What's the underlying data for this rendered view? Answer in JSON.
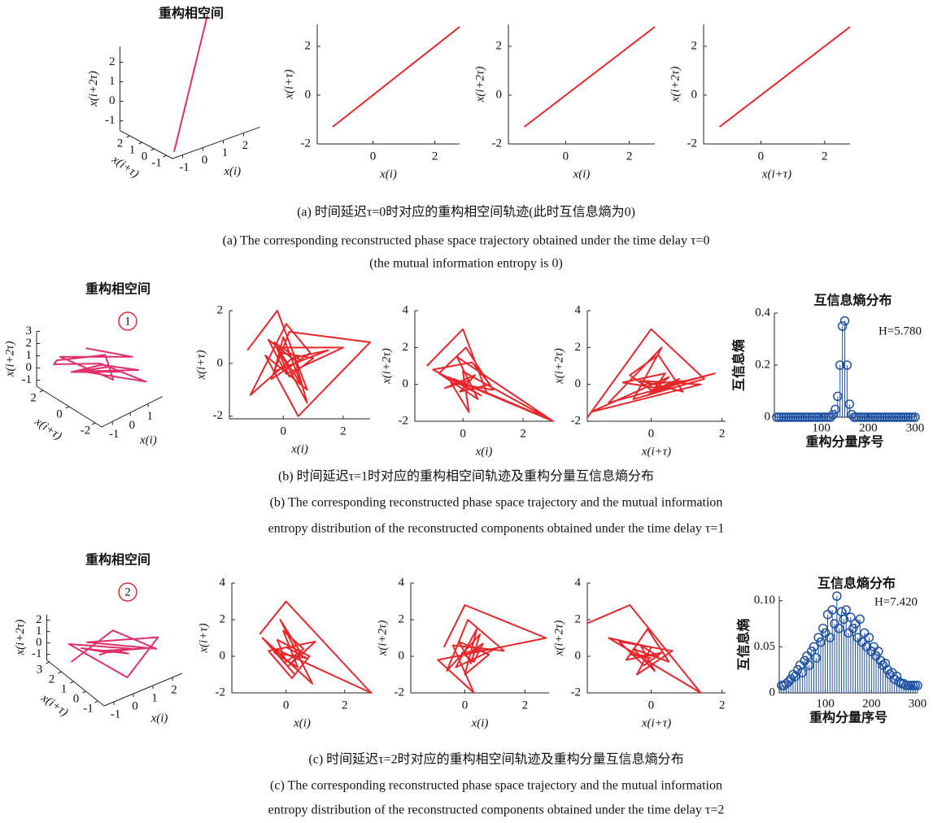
{
  "chart_data": [
    {
      "type": "line3d",
      "title": "重构相空间",
      "color": "#e0306a",
      "xlabel": "x(i)",
      "ylabel": "x(i+τ)",
      "zlabel": "x(i+2τ)",
      "x": [
        -1.3,
        2.8
      ],
      "y": [
        -1.3,
        2.8
      ],
      "values": [
        -1.3,
        2.8
      ],
      "xlim": [
        -1.5,
        2.8
      ],
      "ylim": [
        -1.5,
        2.8
      ],
      "zlim": [
        -1.5,
        2.8
      ],
      "xticks": [
        -1,
        0,
        1,
        2
      ],
      "yticks": [
        -1,
        0,
        1,
        2
      ],
      "zticks": [
        -1,
        0,
        1,
        2
      ]
    },
    {
      "type": "line",
      "color": "#e8262a",
      "xlabel": "x(i)",
      "ylabel": "x(i+τ)",
      "x": [
        -1.3,
        2.8
      ],
      "values": [
        -1.3,
        2.8
      ],
      "xlim": [
        -1.8,
        2.8
      ],
      "ylim": [
        -2,
        2.9
      ],
      "xticks": [
        0,
        2
      ],
      "yticks": [
        -2,
        0,
        2
      ]
    },
    {
      "type": "line",
      "color": "#e8262a",
      "xlabel": "x(i)",
      "ylabel": "x(i+2τ)",
      "x": [
        -1.3,
        2.8
      ],
      "values": [
        -1.3,
        2.8
      ],
      "xlim": [
        -1.8,
        2.8
      ],
      "ylim": [
        -2,
        2.9
      ],
      "xticks": [
        0,
        2
      ],
      "yticks": [
        -2,
        0,
        2
      ]
    },
    {
      "type": "line",
      "color": "#e8262a",
      "xlabel": "x(i+τ)",
      "ylabel": "x(i+2τ)",
      "x": [
        -1.3,
        2.8
      ],
      "values": [
        -1.3,
        2.8
      ],
      "xlim": [
        -1.8,
        2.8
      ],
      "ylim": [
        -2,
        2.9
      ],
      "xticks": [
        0,
        2
      ],
      "yticks": [
        -2,
        0,
        2
      ]
    },
    {
      "type": "line3d",
      "title": "重构相空间",
      "marker": "1",
      "color": "#e0306a",
      "xlabel": "x(i)",
      "ylabel": "x(i+τ)",
      "zlabel": "x(i+2τ)",
      "x": [
        -0.3,
        1.2,
        -0.8,
        0.5,
        1.0,
        -1.2,
        -1.0,
        0.3,
        1.6,
        -0.4,
        0.6,
        -0.2,
        1.4,
        0.2,
        -0.6,
        0.8
      ],
      "y": [
        0.5,
        -1.0,
        1.8,
        -0.5,
        0.8,
        1.5,
        2.0,
        0.2,
        -1.5,
        0.8,
        -0.3,
        1.0,
        -1.2,
        0.0,
        1.2,
        -0.6
      ],
      "values": [
        2.0,
        1.2,
        0.8,
        -0.5,
        0.3,
        1.0,
        0.2,
        0.5,
        -0.8,
        0.0,
        0.4,
        -0.3,
        0.1,
        0.6,
        -0.2,
        0.0
      ],
      "xlim": [
        -1.6,
        1.8
      ],
      "ylim": [
        -2.5,
        2.5
      ],
      "zlim": [
        -1.5,
        3
      ],
      "xticks": [
        -1,
        0,
        1
      ],
      "yticks": [
        -2,
        0,
        2
      ],
      "zticks": [
        -1,
        0,
        1,
        2,
        3
      ]
    },
    {
      "type": "line",
      "color": "#e8262a",
      "xlabel": "x(i)",
      "ylabel": "x(i+τ)",
      "x": [
        -1.2,
        -0.2,
        0.8,
        -0.6,
        0.5,
        2.9,
        0.2,
        -0.4,
        0.9,
        0.1,
        -1.1,
        0.3,
        1.5,
        -0.3,
        0.0,
        0.6,
        -0.2,
        2.0,
        0.1,
        -0.5,
        0.4,
        0.8,
        -0.1,
        1.0,
        0.2,
        -0.3,
        0.6
      ],
      "values": [
        0.5,
        2.0,
        -1.0,
        0.3,
        -2.0,
        0.8,
        1.2,
        -0.6,
        0.4,
        1.5,
        -1.2,
        0.2,
        0.5,
        -0.3,
        1.0,
        -0.8,
        0.6,
        0.6,
        -0.4,
        0.9,
        0.1,
        -1.5,
        0.4,
        0.2,
        -0.5,
        0.8,
        0.1
      ],
      "xlim": [
        -1.8,
        2.9
      ],
      "ylim": [
        -2.1,
        2
      ],
      "xticks": [
        0,
        2
      ],
      "yticks": [
        -2,
        0,
        2
      ]
    },
    {
      "type": "line",
      "color": "#e8262a",
      "xlabel": "x(i)",
      "ylabel": "x(i+2τ)",
      "x": [
        -1.2,
        0.0,
        0.8,
        -0.5,
        3.0,
        -0.2,
        0.5,
        -0.8,
        0.1,
        1.0,
        -0.4,
        0.2,
        0.0,
        2.9,
        -0.3,
        0.6,
        -1.0,
        0.3,
        0.9,
        -0.1,
        0.4,
        -0.6,
        0.2
      ],
      "values": [
        1.0,
        3.0,
        -0.5,
        0.4,
        -2.0,
        1.5,
        -0.8,
        0.6,
        2.0,
        -0.3,
        0.1,
        -1.5,
        0.7,
        -1.9,
        0.3,
        -0.6,
        0.8,
        1.2,
        0.0,
        -0.4,
        0.5,
        -0.2,
        0.2
      ],
      "xlim": [
        -1.6,
        3.0
      ],
      "ylim": [
        -2,
        4
      ],
      "xticks": [
        0,
        2
      ],
      "yticks": [
        -2,
        0,
        2,
        4
      ]
    },
    {
      "type": "line",
      "color": "#e8262a",
      "xlabel": "x(i+τ)",
      "ylabel": "x(i+2τ)",
      "x": [
        -1.8,
        0.0,
        1.5,
        -0.5,
        0.3,
        -1.2,
        1.8,
        0.0,
        -0.6,
        0.2,
        0.9,
        -0.3,
        1.4,
        -1.7,
        0.5,
        -0.1,
        0.8,
        0.2,
        -0.8,
        0.4,
        0.0,
        1.0,
        -0.2
      ],
      "values": [
        -1.8,
        3.0,
        0.3,
        -0.8,
        2.0,
        -1.0,
        0.6,
        -0.3,
        0.5,
        1.6,
        -0.4,
        0.2,
        0.0,
        -1.5,
        0.4,
        -0.6,
        0.3,
        -0.2,
        0.1,
        0.6,
        -0.5,
        0.2,
        0.0
      ],
      "xlim": [
        -1.8,
        2.1
      ],
      "ylim": [
        -2,
        4
      ],
      "xticks": [
        0,
        2
      ],
      "yticks": [
        -2,
        0,
        2,
        4
      ]
    },
    {
      "type": "stem",
      "title": "互信息熵分布",
      "annotation": "H=5.780",
      "color": "#1f52a5",
      "xlabel": "重构分量序号",
      "ylabel": "互信息熵",
      "x": [
        5,
        10,
        15,
        20,
        25,
        30,
        35,
        40,
        45,
        50,
        55,
        60,
        65,
        70,
        75,
        80,
        85,
        90,
        95,
        100,
        105,
        110,
        115,
        120,
        125,
        130,
        135,
        140,
        145,
        150,
        155,
        160,
        165,
        170,
        175,
        180,
        185,
        190,
        195,
        200,
        205,
        210,
        215,
        220,
        225,
        230,
        235,
        240,
        245,
        250,
        255,
        260,
        265,
        270,
        275,
        280,
        285,
        290,
        295,
        300
      ],
      "values": [
        0,
        0,
        0,
        0,
        0,
        0,
        0,
        0,
        0,
        0,
        0,
        0,
        0,
        0,
        0,
        0,
        0,
        0,
        0,
        0,
        0,
        0,
        0,
        0,
        0.01,
        0.03,
        0.08,
        0.2,
        0.35,
        0.37,
        0.2,
        0.05,
        0.01,
        0,
        0,
        0,
        0,
        0,
        0,
        0,
        0,
        0,
        0,
        0,
        0,
        0,
        0,
        0,
        0,
        0,
        0,
        0,
        0,
        0,
        0,
        0,
        0,
        0,
        0,
        0
      ],
      "xlim": [
        0,
        300
      ],
      "ylim": [
        0,
        0.4
      ],
      "xticks": [
        100,
        200,
        300
      ],
      "yticks": [
        0,
        0.2,
        0.4
      ]
    },
    {
      "type": "line3d",
      "title": "重构相空间",
      "marker": "2",
      "color": "#e0306a",
      "xlabel": "x(i)",
      "ylabel": "x(i+τ)",
      "zlabel": "x(i+2τ)",
      "x": [
        -1.0,
        0.2,
        1.8,
        -0.5,
        2.2,
        0.0,
        -0.8,
        1.0,
        0.4,
        -0.3,
        1.5,
        0.1,
        -0.6,
        0.8,
        0.3,
        -0.2
      ],
      "y": [
        2.0,
        0.5,
        -0.5,
        1.5,
        0.0,
        -1.0,
        2.5,
        0.3,
        1.0,
        0.8,
        -0.3,
        1.2,
        1.8,
        0.2,
        0.6,
        1.0
      ],
      "values": [
        -1.0,
        2.2,
        0.3,
        0.8,
        0.6,
        -0.5,
        0.0,
        0.2,
        -0.3,
        0.5,
        0.4,
        -0.2,
        0.1,
        0.0,
        0.3,
        -0.1
      ],
      "xlim": [
        -1.5,
        2.5
      ],
      "ylim": [
        -1.5,
        3.2
      ],
      "zlim": [
        -1.5,
        2.5
      ],
      "xticks": [
        -1,
        0,
        1,
        2
      ],
      "yticks": [
        -1,
        0,
        1,
        2,
        3
      ],
      "zticks": [
        -1,
        0,
        1,
        2
      ]
    },
    {
      "type": "line",
      "color": "#e8262a",
      "xlabel": "x(i)",
      "ylabel": "x(i+τ)",
      "x": [
        -0.9,
        0.0,
        2.9,
        -0.5,
        0.3,
        -0.8,
        0.9,
        -0.2,
        0.5,
        0.1,
        1.0,
        -0.6,
        0.2,
        0.8,
        -0.3,
        0.0,
        0.6,
        -0.1,
        0.4,
        -0.4,
        0.7,
        0.0
      ],
      "values": [
        1.2,
        3.0,
        -2.0,
        0.5,
        -1.0,
        1.0,
        -1.5,
        2.0,
        0.2,
        -0.5,
        0.8,
        0.3,
        -1.2,
        0.0,
        0.9,
        -0.3,
        0.4,
        1.4,
        -0.6,
        0.2,
        -0.1,
        0.5
      ],
      "xlim": [
        -1.85,
        2.95
      ],
      "ylim": [
        -2,
        4
      ],
      "xticks": [
        0,
        2
      ],
      "yticks": [
        -2,
        0,
        2,
        4
      ]
    },
    {
      "type": "line",
      "color": "#e8262a",
      "xlabel": "x(i)",
      "ylabel": "x(i+2τ)",
      "x": [
        -0.7,
        0.0,
        2.7,
        -0.9,
        0.3,
        -0.4,
        1.3,
        0.1,
        -0.6,
        0.5,
        0.2,
        -0.2,
        0.8,
        0.0,
        0.4,
        -0.3,
        1.0,
        -0.1,
        0.3,
        0.6,
        0.0
      ],
      "values": [
        0.5,
        2.8,
        1.0,
        -0.2,
        -2.0,
        0.6,
        0.3,
        2.0,
        -0.8,
        1.2,
        -0.4,
        0.8,
        0.1,
        -1.0,
        1.5,
        -0.6,
        0.4,
        0.2,
        -0.3,
        0.7,
        0.0
      ],
      "xlim": [
        -1.8,
        2.8
      ],
      "ylim": [
        -2,
        4
      ],
      "xticks": [
        0,
        2
      ],
      "yticks": [
        -2,
        0,
        2,
        4
      ]
    },
    {
      "type": "line",
      "color": "#e8262a",
      "xlabel": "x(i+τ)",
      "ylabel": "x(i+2τ)",
      "x": [
        -1.8,
        -0.6,
        1.4,
        -1.2,
        0.0,
        -0.4,
        0.6,
        -0.9,
        -0.2,
        0.3,
        -0.7,
        -0.1,
        0.5,
        -0.5,
        0.1,
        -0.3,
        0.2,
        -0.6,
        0.0
      ],
      "values": [
        1.8,
        2.8,
        -2.0,
        1.0,
        0.5,
        -1.0,
        0.3,
        0.8,
        -0.5,
        0.2,
        -0.2,
        1.5,
        -0.3,
        0.4,
        -0.8,
        0.6,
        0.0,
        0.1,
        -0.1
      ],
      "xlim": [
        -1.8,
        2.1
      ],
      "ylim": [
        -2,
        4
      ],
      "xticks": [
        0,
        2
      ],
      "yticks": [
        -2,
        0,
        2,
        4
      ]
    },
    {
      "type": "stem",
      "title": "互信息熵分布",
      "annotation": "H=7.420",
      "color": "#1f52a5",
      "xlabel": "重构分量序号",
      "ylabel": "互信息熵",
      "x": [
        5,
        10,
        15,
        20,
        25,
        30,
        35,
        40,
        45,
        50,
        55,
        60,
        65,
        70,
        75,
        80,
        85,
        90,
        95,
        100,
        105,
        110,
        115,
        120,
        125,
        130,
        135,
        140,
        145,
        150,
        155,
        160,
        165,
        170,
        175,
        180,
        185,
        190,
        195,
        200,
        205,
        210,
        215,
        220,
        225,
        230,
        235,
        240,
        245,
        250,
        255,
        260,
        265,
        270,
        275,
        280,
        285,
        290,
        295,
        300
      ],
      "values": [
        0.008,
        0.008,
        0.01,
        0.012,
        0.015,
        0.02,
        0.018,
        0.025,
        0.03,
        0.022,
        0.035,
        0.04,
        0.03,
        0.045,
        0.05,
        0.038,
        0.06,
        0.055,
        0.07,
        0.065,
        0.085,
        0.06,
        0.09,
        0.075,
        0.105,
        0.07,
        0.088,
        0.08,
        0.09,
        0.065,
        0.082,
        0.07,
        0.075,
        0.06,
        0.08,
        0.055,
        0.065,
        0.05,
        0.06,
        0.045,
        0.05,
        0.04,
        0.045,
        0.035,
        0.03,
        0.032,
        0.025,
        0.02,
        0.022,
        0.015,
        0.018,
        0.012,
        0.01,
        0.01,
        0.008,
        0.008,
        0.008,
        0.008,
        0.008,
        0.008
      ],
      "xlim": [
        0,
        300
      ],
      "ylim": [
        0,
        0.105
      ],
      "xticks": [
        100,
        200,
        300
      ],
      "yticks": [
        0,
        0.05,
        {
          "value": 0.1,
          "label": "0.10"
        }
      ]
    }
  ],
  "captions": [
    [
      "(a) 时间延迟τ=0时对应的重构相空间轨迹(此时互信息熵为0)",
      "(a) The corresponding reconstructed phase space trajectory obtained under the time delay τ=0",
      "(the mutual information entropy is 0)"
    ],
    [
      "(b) 时间延迟τ=1时对应的重构相空间轨迹及重构分量互信息熵分布",
      "(b) The corresponding reconstructed phase space trajectory and the mutual information",
      "entropy distribution of the reconstructed components obtained under the time delay τ=1"
    ],
    [
      "(c) 时间延迟τ=2时对应的重构相空间轨迹及重构分量互信息熵分布",
      "(c) The corresponding reconstructed phase space trajectory and the mutual information",
      "entropy distribution of the reconstructed components obtained under the time delay τ=2"
    ]
  ]
}
